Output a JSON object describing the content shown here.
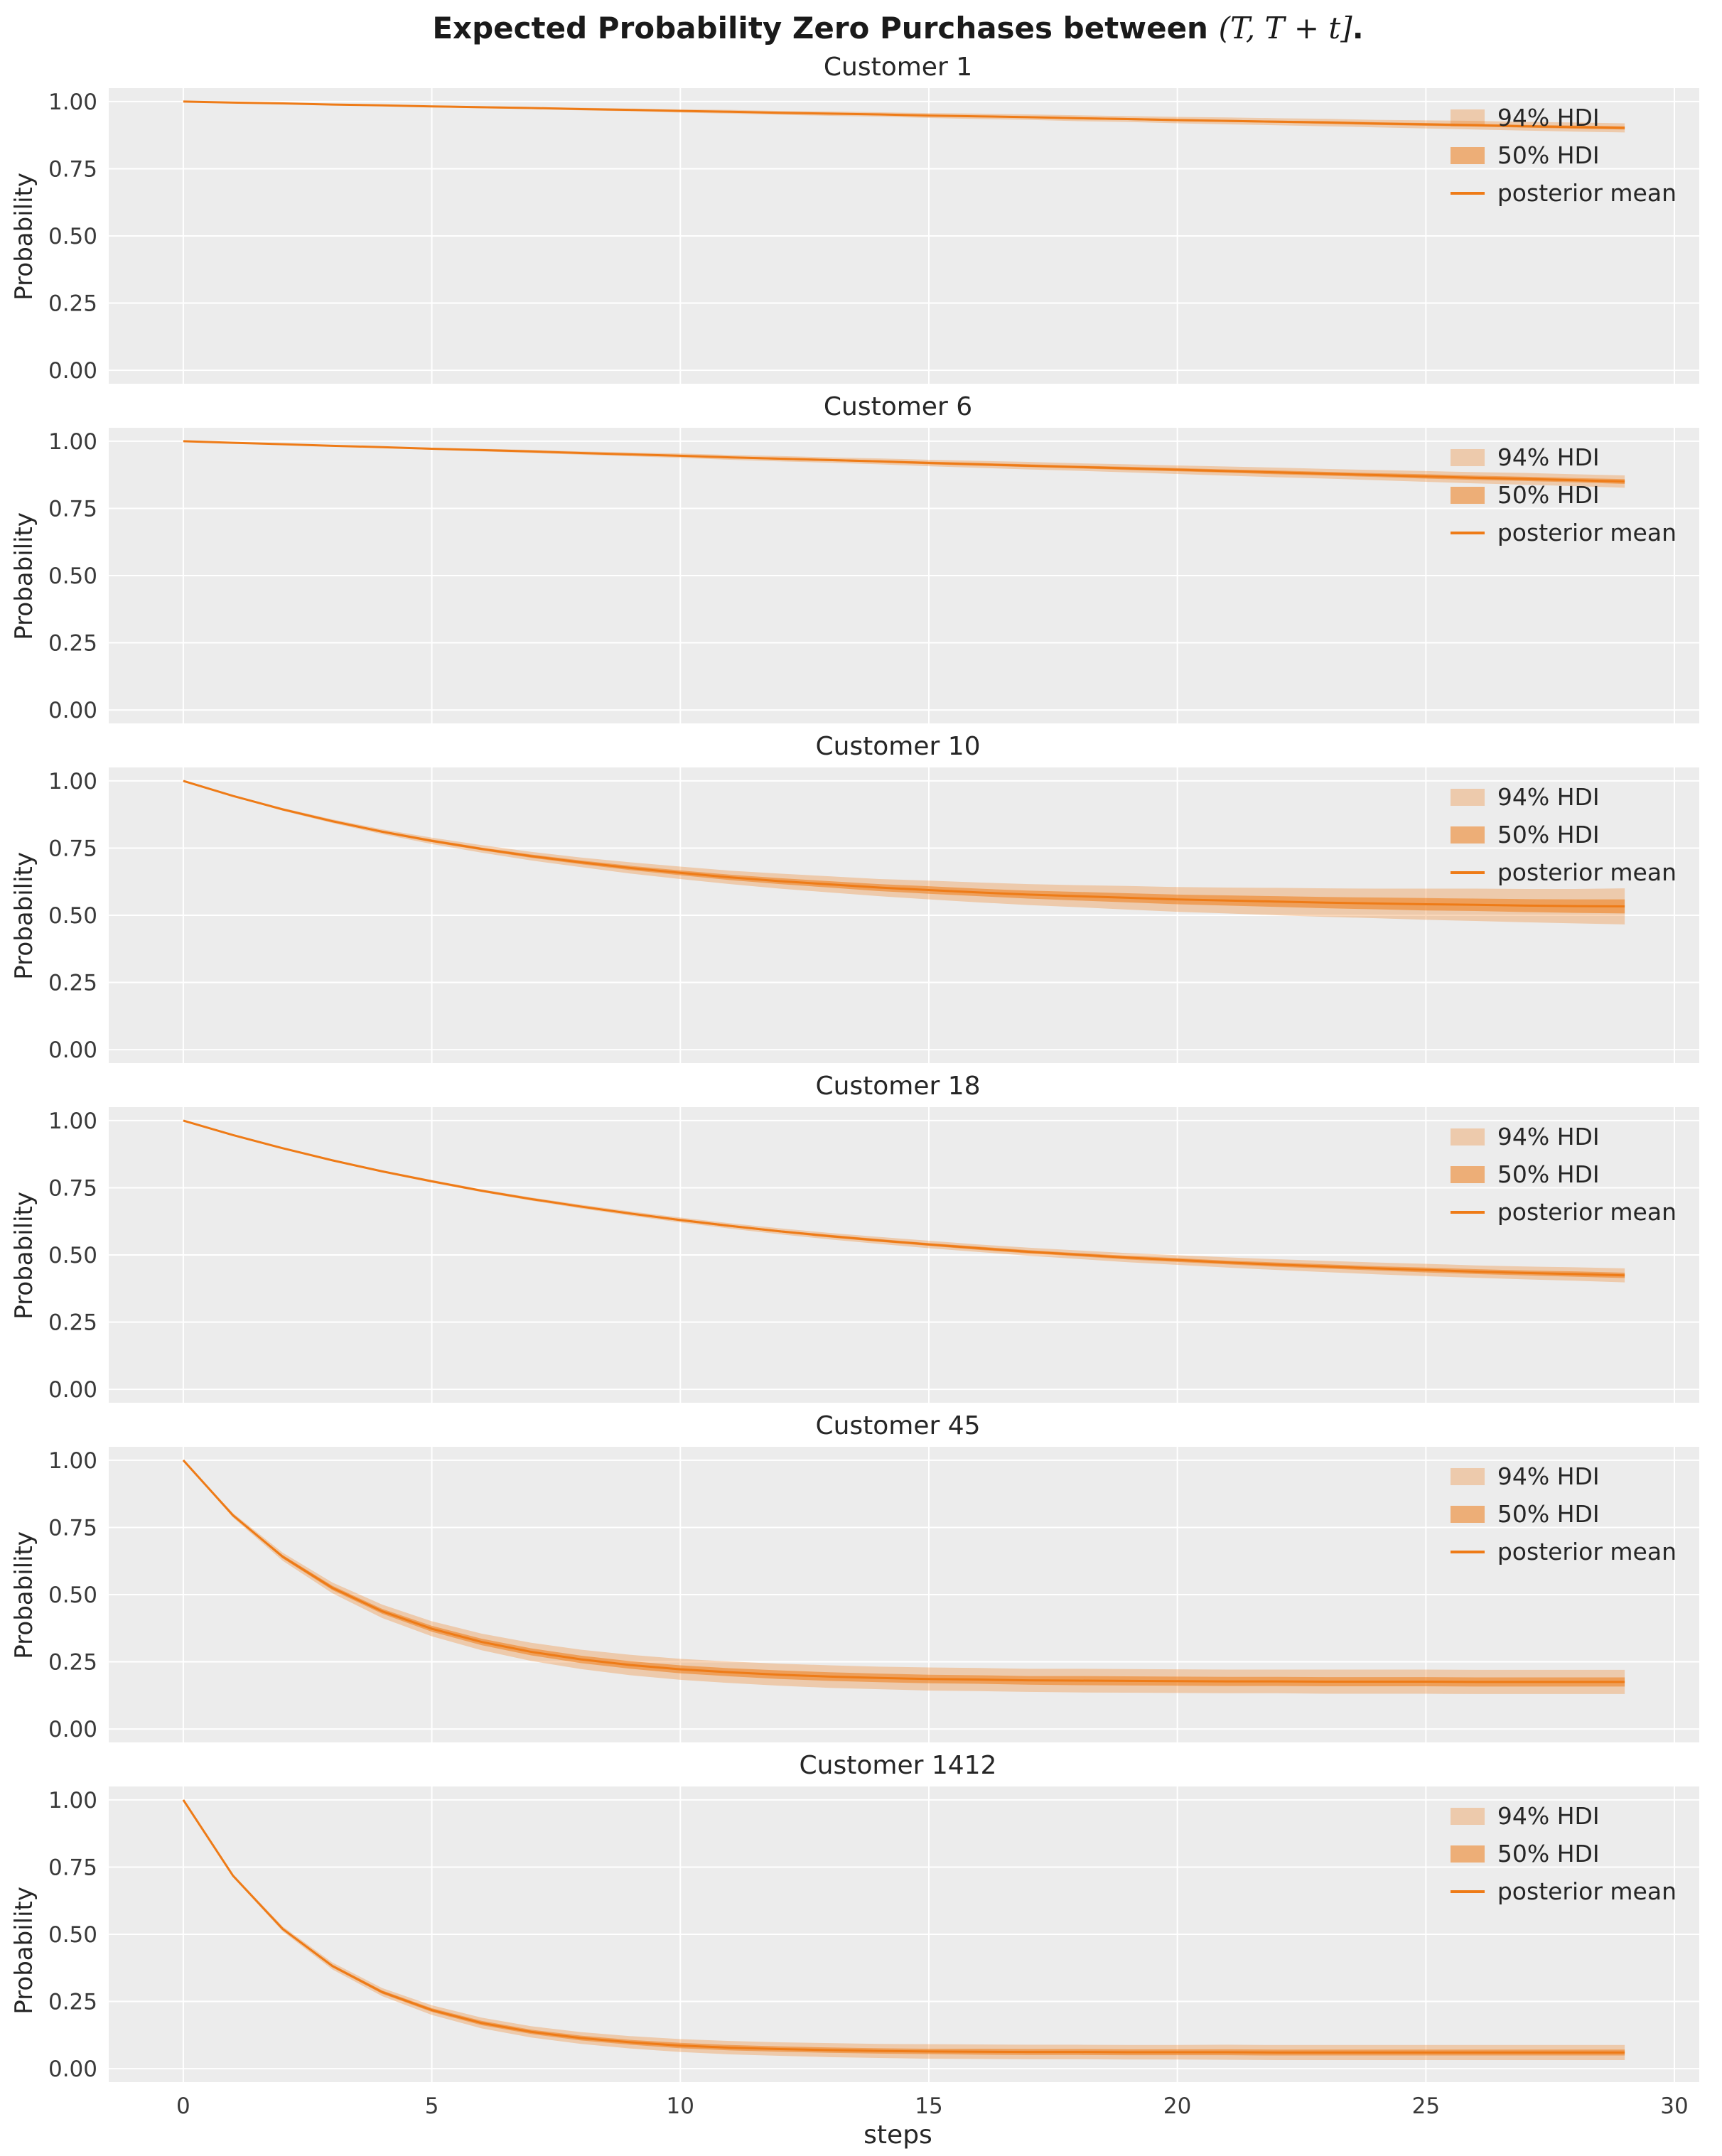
{
  "figure_title": {
    "prefix": "Expected Probability Zero Purchases between ",
    "math": "(T, T + t]",
    "suffix": "."
  },
  "colors": {
    "line": "#ee7b17",
    "band94": "rgba(238,123,23,0.30)",
    "band50": "rgba(238,123,23,0.55)",
    "axes_bg": "#ececec",
    "grid": "#ffffff",
    "tick_text": "#3a3a3a"
  },
  "x_steps": [
    0,
    1,
    2,
    3,
    4,
    5,
    6,
    7,
    8,
    9,
    10,
    11,
    12,
    13,
    14,
    15,
    16,
    17,
    18,
    19,
    20,
    21,
    22,
    23,
    24,
    25,
    26,
    27,
    28,
    29
  ],
  "chart_data": [
    {
      "type": "line",
      "title": "Customer 1",
      "ylabel": "Probability",
      "xlabel": "",
      "xlim": [
        -1.5,
        30.5
      ],
      "ylim": [
        -0.05,
        1.05
      ],
      "xticks": [
        0,
        5,
        10,
        15,
        20,
        25,
        30
      ],
      "yticks": [
        0,
        0.25,
        0.5,
        0.75,
        1.0
      ],
      "show_xtick_labels": false,
      "legend": [
        "94% HDI",
        "50% HDI",
        "posterior mean"
      ],
      "mean": [
        1.0,
        0.996,
        0.993,
        0.989,
        0.986,
        0.982,
        0.979,
        0.976,
        0.972,
        0.969,
        0.965,
        0.962,
        0.958,
        0.955,
        0.952,
        0.948,
        0.945,
        0.942,
        0.938,
        0.935,
        0.931,
        0.928,
        0.925,
        0.922,
        0.918,
        0.915,
        0.912,
        0.908,
        0.905,
        0.902
      ],
      "hdi94_half": [
        0,
        0.001,
        0.001,
        0.002,
        0.002,
        0.003,
        0.004,
        0.004,
        0.005,
        0.005,
        0.006,
        0.007,
        0.007,
        0.008,
        0.008,
        0.009,
        0.01,
        0.01,
        0.011,
        0.011,
        0.012,
        0.013,
        0.013,
        0.014,
        0.014,
        0.015,
        0.016,
        0.016,
        0.017,
        0.017
      ],
      "hdi50_half": [
        0,
        0,
        0,
        0.001,
        0.001,
        0.001,
        0.001,
        0.001,
        0.002,
        0.002,
        0.002,
        0.002,
        0.002,
        0.003,
        0.003,
        0.003,
        0.003,
        0.003,
        0.004,
        0.004,
        0.004,
        0.004,
        0.004,
        0.005,
        0.005,
        0.005,
        0.005,
        0.005,
        0.006,
        0.006
      ]
    },
    {
      "type": "line",
      "title": "Customer 6",
      "ylabel": "Probability",
      "xlabel": "",
      "xlim": [
        -1.5,
        30.5
      ],
      "ylim": [
        -0.05,
        1.05
      ],
      "xticks": [
        0,
        5,
        10,
        15,
        20,
        25,
        30
      ],
      "yticks": [
        0,
        0.25,
        0.5,
        0.75,
        1.0
      ],
      "show_xtick_labels": false,
      "legend": [
        "94% HDI",
        "50% HDI",
        "posterior mean"
      ],
      "mean": [
        1.0,
        0.994,
        0.989,
        0.983,
        0.978,
        0.972,
        0.967,
        0.962,
        0.956,
        0.951,
        0.946,
        0.94,
        0.935,
        0.93,
        0.925,
        0.919,
        0.914,
        0.909,
        0.904,
        0.899,
        0.894,
        0.889,
        0.884,
        0.879,
        0.874,
        0.869,
        0.864,
        0.86,
        0.855,
        0.85
      ],
      "hdi94_half": [
        0,
        0.001,
        0.002,
        0.002,
        0.003,
        0.004,
        0.005,
        0.006,
        0.006,
        0.007,
        0.008,
        0.009,
        0.01,
        0.01,
        0.011,
        0.012,
        0.013,
        0.014,
        0.014,
        0.015,
        0.016,
        0.017,
        0.018,
        0.018,
        0.019,
        0.02,
        0.021,
        0.022,
        0.022,
        0.023
      ],
      "hdi50_half": [
        0,
        0,
        0.001,
        0.001,
        0.001,
        0.002,
        0.002,
        0.002,
        0.002,
        0.003,
        0.003,
        0.003,
        0.004,
        0.004,
        0.004,
        0.005,
        0.005,
        0.005,
        0.005,
        0.006,
        0.006,
        0.006,
        0.007,
        0.007,
        0.007,
        0.008,
        0.008,
        0.008,
        0.008,
        0.009
      ]
    },
    {
      "type": "line",
      "title": "Customer 10",
      "ylabel": "Probability",
      "xlabel": "",
      "xlim": [
        -1.5,
        30.5
      ],
      "ylim": [
        -0.05,
        1.05
      ],
      "xticks": [
        0,
        5,
        10,
        15,
        20,
        25,
        30
      ],
      "yticks": [
        0,
        0.25,
        0.5,
        0.75,
        1.0
      ],
      "show_xtick_labels": false,
      "legend": [
        "94% HDI",
        "50% HDI",
        "posterior mean"
      ],
      "mean": [
        1.0,
        0.944,
        0.894,
        0.85,
        0.811,
        0.777,
        0.747,
        0.72,
        0.697,
        0.676,
        0.658,
        0.641,
        0.627,
        0.615,
        0.603,
        0.594,
        0.585,
        0.577,
        0.571,
        0.565,
        0.559,
        0.555,
        0.551,
        0.547,
        0.544,
        0.541,
        0.539,
        0.536,
        0.534,
        0.533
      ],
      "hdi94_half": [
        0,
        0.002,
        0.005,
        0.007,
        0.009,
        0.012,
        0.014,
        0.016,
        0.018,
        0.021,
        0.023,
        0.025,
        0.028,
        0.03,
        0.032,
        0.035,
        0.037,
        0.039,
        0.041,
        0.044,
        0.046,
        0.048,
        0.051,
        0.053,
        0.055,
        0.058,
        0.06,
        0.062,
        0.064,
        0.067
      ],
      "hdi50_half": [
        0,
        0.001,
        0.002,
        0.003,
        0.004,
        0.005,
        0.005,
        0.006,
        0.007,
        0.008,
        0.009,
        0.01,
        0.011,
        0.012,
        0.013,
        0.014,
        0.014,
        0.015,
        0.016,
        0.017,
        0.018,
        0.019,
        0.02,
        0.021,
        0.022,
        0.023,
        0.023,
        0.024,
        0.025,
        0.026
      ]
    },
    {
      "type": "line",
      "title": "Customer 18",
      "ylabel": "Probability",
      "xlabel": "",
      "xlim": [
        -1.5,
        30.5
      ],
      "ylim": [
        -0.05,
        1.05
      ],
      "xticks": [
        0,
        5,
        10,
        15,
        20,
        25,
        30
      ],
      "yticks": [
        0,
        0.25,
        0.5,
        0.75,
        1.0
      ],
      "show_xtick_labels": false,
      "legend": [
        "94% HDI",
        "50% HDI",
        "posterior mean"
      ],
      "mean": [
        1.0,
        0.946,
        0.897,
        0.852,
        0.811,
        0.774,
        0.739,
        0.708,
        0.68,
        0.654,
        0.63,
        0.608,
        0.588,
        0.57,
        0.554,
        0.539,
        0.525,
        0.512,
        0.501,
        0.49,
        0.481,
        0.472,
        0.464,
        0.457,
        0.45,
        0.444,
        0.438,
        0.433,
        0.429,
        0.424
      ],
      "hdi94_half": [
        0,
        0.001,
        0.002,
        0.003,
        0.004,
        0.005,
        0.005,
        0.006,
        0.007,
        0.008,
        0.009,
        0.01,
        0.011,
        0.012,
        0.013,
        0.014,
        0.014,
        0.015,
        0.016,
        0.017,
        0.018,
        0.019,
        0.02,
        0.021,
        0.022,
        0.023,
        0.023,
        0.024,
        0.025,
        0.026
      ],
      "hdi50_half": [
        0,
        0,
        0.001,
        0.001,
        0.001,
        0.002,
        0.002,
        0.002,
        0.003,
        0.003,
        0.004,
        0.004,
        0.004,
        0.005,
        0.005,
        0.005,
        0.006,
        0.006,
        0.006,
        0.007,
        0.007,
        0.007,
        0.008,
        0.008,
        0.008,
        0.009,
        0.009,
        0.009,
        0.01,
        0.01
      ]
    },
    {
      "type": "line",
      "title": "Customer 45",
      "ylabel": "Probability",
      "xlabel": "",
      "xlim": [
        -1.5,
        30.5
      ],
      "ylim": [
        -0.05,
        1.05
      ],
      "xticks": [
        0,
        5,
        10,
        15,
        20,
        25,
        30
      ],
      "yticks": [
        0,
        0.25,
        0.5,
        0.75,
        1.0
      ],
      "show_xtick_labels": false,
      "legend": [
        "94% HDI",
        "50% HDI",
        "posterior mean"
      ],
      "mean": [
        1.0,
        0.795,
        0.641,
        0.525,
        0.438,
        0.373,
        0.324,
        0.287,
        0.259,
        0.238,
        0.222,
        0.211,
        0.202,
        0.195,
        0.19,
        0.186,
        0.184,
        0.181,
        0.18,
        0.179,
        0.178,
        0.177,
        0.177,
        0.176,
        0.176,
        0.176,
        0.175,
        0.175,
        0.175,
        0.175
      ],
      "hdi94_half": [
        0,
        0.008,
        0.015,
        0.02,
        0.025,
        0.028,
        0.031,
        0.034,
        0.036,
        0.038,
        0.039,
        0.04,
        0.041,
        0.042,
        0.042,
        0.043,
        0.043,
        0.043,
        0.044,
        0.044,
        0.044,
        0.044,
        0.044,
        0.045,
        0.045,
        0.045,
        0.045,
        0.045,
        0.045,
        0.045
      ],
      "hdi50_half": [
        0,
        0.003,
        0.006,
        0.008,
        0.009,
        0.011,
        0.012,
        0.013,
        0.014,
        0.014,
        0.015,
        0.015,
        0.016,
        0.016,
        0.016,
        0.016,
        0.016,
        0.016,
        0.017,
        0.017,
        0.017,
        0.017,
        0.017,
        0.017,
        0.017,
        0.017,
        0.017,
        0.017,
        0.017,
        0.017
      ]
    },
    {
      "type": "line",
      "title": "Customer 1412",
      "ylabel": "Probability",
      "xlabel": "steps",
      "xlim": [
        -1.5,
        30.5
      ],
      "ylim": [
        -0.05,
        1.05
      ],
      "xticks": [
        0,
        5,
        10,
        15,
        20,
        25,
        30
      ],
      "yticks": [
        0,
        0.25,
        0.5,
        0.75,
        1.0
      ],
      "show_xtick_labels": true,
      "legend": [
        "94% HDI",
        "50% HDI",
        "posterior mean"
      ],
      "mean": [
        1.0,
        0.718,
        0.52,
        0.382,
        0.285,
        0.218,
        0.17,
        0.137,
        0.114,
        0.098,
        0.086,
        0.078,
        0.073,
        0.069,
        0.066,
        0.064,
        0.063,
        0.062,
        0.062,
        0.061,
        0.061,
        0.061,
        0.06,
        0.06,
        0.06,
        0.06,
        0.06,
        0.06,
        0.06,
        0.06
      ],
      "hdi94_half": [
        0,
        0.005,
        0.009,
        0.013,
        0.015,
        0.018,
        0.02,
        0.021,
        0.022,
        0.023,
        0.024,
        0.025,
        0.025,
        0.026,
        0.026,
        0.027,
        0.027,
        0.027,
        0.027,
        0.027,
        0.027,
        0.028,
        0.028,
        0.028,
        0.028,
        0.028,
        0.028,
        0.028,
        0.028,
        0.028
      ],
      "hdi50_half": [
        0,
        0.002,
        0.004,
        0.005,
        0.006,
        0.007,
        0.008,
        0.008,
        0.009,
        0.009,
        0.01,
        0.01,
        0.01,
        0.01,
        0.01,
        0.01,
        0.011,
        0.011,
        0.011,
        0.011,
        0.011,
        0.011,
        0.011,
        0.011,
        0.011,
        0.011,
        0.011,
        0.011,
        0.011,
        0.011
      ]
    }
  ]
}
